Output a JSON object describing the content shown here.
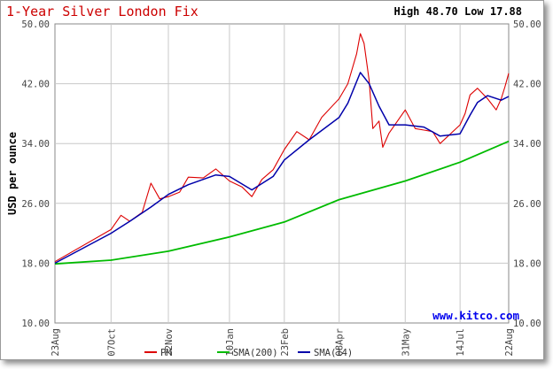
{
  "chart_data": {
    "type": "line",
    "title": "1-Year Silver London Fix",
    "stats": {
      "high_label": "High",
      "high": "48.70",
      "low_label": "Low",
      "low": "17.88"
    },
    "ylabel": "USD per ounce",
    "ylim": [
      10,
      50
    ],
    "y_ticks": [
      "10.00",
      "18.00",
      "26.00",
      "34.00",
      "42.00",
      "50.00"
    ],
    "x_ticks": [
      "23Aug",
      "07Oct",
      "22Nov",
      "10Jan",
      "23Feb",
      "08Apr",
      "31May",
      "14Jul",
      "22Aug"
    ],
    "watermark": "www.kitco.com",
    "colors": {
      "pm": "#dd0000",
      "sma200": "#00bb00",
      "sma14": "#0000aa",
      "title": "#cc0000"
    },
    "grid": true,
    "legend_position": "bottom",
    "series": [
      {
        "name": "PM",
        "points": [
          [
            "23Aug",
            18.2
          ],
          [
            "07Oct",
            22.5
          ],
          [
            "Oct15",
            24.4
          ],
          [
            "Oct22",
            23.6
          ],
          [
            "Nov01",
            24.8
          ],
          [
            "Nov08",
            28.7
          ],
          [
            "Nov15",
            26.6
          ],
          [
            "22Nov",
            26.9
          ],
          [
            "Dec01",
            27.5
          ],
          [
            "Dec08",
            29.5
          ],
          [
            "Dec20",
            29.4
          ],
          [
            "Dec30",
            30.6
          ],
          [
            "10Jan",
            29.0
          ],
          [
            "Jan20",
            28.2
          ],
          [
            "Jan28",
            26.9
          ],
          [
            "Feb05",
            29.2
          ],
          [
            "Feb14",
            30.5
          ],
          [
            "23Feb",
            33.2
          ],
          [
            "Mar05",
            35.6
          ],
          [
            "Mar15",
            34.5
          ],
          [
            "Mar25",
            37.5
          ],
          [
            "08Apr",
            40.0
          ],
          [
            "Apr15",
            42.0
          ],
          [
            "Apr22",
            46.0
          ],
          [
            "Apr25",
            48.7
          ],
          [
            "Apr28",
            47.4
          ],
          [
            "May02",
            42.5
          ],
          [
            "May05",
            36.0
          ],
          [
            "May10",
            37.0
          ],
          [
            "May13",
            33.5
          ],
          [
            "May18",
            35.4
          ],
          [
            "31May",
            38.5
          ],
          [
            "Jun08",
            36.0
          ],
          [
            "Jun15",
            35.8
          ],
          [
            "Jun22",
            35.6
          ],
          [
            "Jun28",
            34.0
          ],
          [
            "14Jul",
            36.5
          ],
          [
            "Jul18",
            38.0
          ],
          [
            "Jul22",
            40.5
          ],
          [
            "Jul28",
            41.4
          ],
          [
            "Aug05",
            40.0
          ],
          [
            "Aug12",
            38.5
          ],
          [
            "Aug16",
            40.0
          ],
          [
            "Aug19",
            41.6
          ],
          [
            "22Aug",
            43.4
          ]
        ]
      },
      {
        "name": "SMA(200)",
        "points": [
          [
            "23Aug",
            17.9
          ],
          [
            "07Oct",
            18.4
          ],
          [
            "22Nov",
            19.6
          ],
          [
            "10Jan",
            21.5
          ],
          [
            "23Feb",
            23.5
          ],
          [
            "08Apr",
            26.5
          ],
          [
            "31May",
            29.0
          ],
          [
            "14Jul",
            31.5
          ],
          [
            "22Aug",
            34.3
          ]
        ]
      },
      {
        "name": "SMA(14)",
        "points": [
          [
            "23Aug",
            18.0
          ],
          [
            "07Oct",
            22.0
          ],
          [
            "Oct22",
            23.6
          ],
          [
            "Nov08",
            25.5
          ],
          [
            "22Nov",
            27.2
          ],
          [
            "Dec08",
            28.5
          ],
          [
            "Dec30",
            29.8
          ],
          [
            "10Jan",
            29.6
          ],
          [
            "Jan28",
            27.8
          ],
          [
            "Feb14",
            29.6
          ],
          [
            "23Feb",
            31.8
          ],
          [
            "Mar15",
            34.5
          ],
          [
            "08Apr",
            37.5
          ],
          [
            "Apr15",
            39.4
          ],
          [
            "Apr25",
            43.5
          ],
          [
            "May02",
            42.0
          ],
          [
            "May10",
            39.0
          ],
          [
            "May18",
            36.5
          ],
          [
            "31May",
            36.5
          ],
          [
            "Jun15",
            36.2
          ],
          [
            "Jun28",
            35.0
          ],
          [
            "14Jul",
            35.3
          ],
          [
            "Jul22",
            37.8
          ],
          [
            "Jul28",
            39.5
          ],
          [
            "Aug05",
            40.4
          ],
          [
            "Aug16",
            39.8
          ],
          [
            "22Aug",
            40.3
          ]
        ]
      }
    ],
    "x_positions": {
      "23Aug": 0,
      "07Oct": 45,
      "Oct15": 53,
      "Oct22": 60,
      "Nov01": 70,
      "Nov08": 77,
      "Nov15": 84,
      "22Nov": 91,
      "Dec01": 100,
      "Dec08": 107,
      "Dec20": 119,
      "Dec30": 129,
      "10Jan": 140,
      "Jan20": 150,
      "Jan28": 158,
      "Feb05": 166,
      "Feb14": 175,
      "23Feb": 184,
      "Mar05": 194,
      "Mar15": 204,
      "Mar25": 214,
      "08Apr": 228,
      "Apr15": 235,
      "Apr22": 242,
      "Apr25": 245,
      "Apr28": 248,
      "May02": 252,
      "May05": 255,
      "May10": 260,
      "May13": 263,
      "May18": 268,
      "31May": 281,
      "Jun08": 289,
      "Jun15": 296,
      "Jun22": 303,
      "Jun28": 309,
      "14Jul": 325,
      "Jul18": 329,
      "Jul22": 333,
      "Jul28": 339,
      "Aug05": 347,
      "Aug12": 354,
      "Aug16": 358,
      "Aug19": 361,
      "22Aug": 364
    }
  }
}
